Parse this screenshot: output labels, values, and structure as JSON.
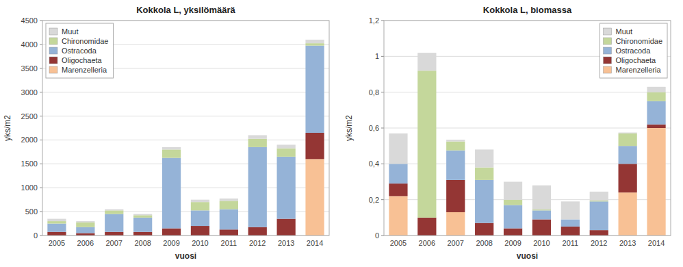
{
  "chart_data": [
    {
      "type": "bar",
      "stacked": true,
      "title": "Kokkola L, yksilömäärä",
      "x_label": "vuosi",
      "y_label": "yks/m2",
      "categories": [
        "2005",
        "2006",
        "2007",
        "2008",
        "2009",
        "2010",
        "2011",
        "2012",
        "2013",
        "2014"
      ],
      "series": [
        {
          "name": "Marenzelleria",
          "color": "#F8C195",
          "values": [
            0,
            0,
            0,
            0,
            0,
            0,
            0,
            0,
            0,
            1600
          ]
        },
        {
          "name": "Oligochaeta",
          "color": "#943634",
          "values": [
            75,
            50,
            75,
            75,
            150,
            200,
            125,
            175,
            350,
            550
          ]
        },
        {
          "name": "Ostracoda",
          "color": "#95B3D7",
          "values": [
            175,
            125,
            375,
            300,
            1475,
            325,
            425,
            1675,
            1300,
            1825
          ]
        },
        {
          "name": "Chironomidae",
          "color": "#C4D79B",
          "values": [
            50,
            100,
            75,
            50,
            175,
            175,
            175,
            175,
            175,
            50
          ]
        },
        {
          "name": "Muut",
          "color": "#D9D9D9",
          "values": [
            50,
            25,
            25,
            25,
            50,
            50,
            50,
            75,
            75,
            75
          ]
        }
      ],
      "ylim": [
        0,
        4500
      ],
      "yticks": [
        0,
        500,
        1000,
        1500,
        2000,
        2500,
        3000,
        3500,
        4000,
        4500
      ],
      "grid": true,
      "legend": "upper left"
    },
    {
      "type": "bar",
      "stacked": true,
      "title": "Kokkola L, biomassa",
      "x_label": "vuosi",
      "y_label": "yks/m2",
      "categories": [
        "2005",
        "2006",
        "2007",
        "2008",
        "2009",
        "2010",
        "2011",
        "2012",
        "2013",
        "2014"
      ],
      "series": [
        {
          "name": "Marenzelleria",
          "color": "#F8C195",
          "values": [
            0.22,
            0.0,
            0.13,
            0.0,
            0.0,
            0.0,
            0.0,
            0.0,
            0.24,
            0.6
          ]
        },
        {
          "name": "Oligochaeta",
          "color": "#943634",
          "values": [
            0.07,
            0.1,
            0.18,
            0.07,
            0.04,
            0.09,
            0.05,
            0.03,
            0.16,
            0.02
          ]
        },
        {
          "name": "Ostracoda",
          "color": "#95B3D7",
          "values": [
            0.11,
            0.0,
            0.165,
            0.24,
            0.13,
            0.05,
            0.04,
            0.16,
            0.1,
            0.13
          ]
        },
        {
          "name": "Chironomidae",
          "color": "#C4D79B",
          "values": [
            0.0,
            0.82,
            0.05,
            0.07,
            0.03,
            0.005,
            0.0,
            0.005,
            0.07,
            0.05
          ]
        },
        {
          "name": "Muut",
          "color": "#D9D9D9",
          "values": [
            0.17,
            0.1,
            0.01,
            0.1,
            0.1,
            0.135,
            0.1,
            0.05,
            0.005,
            0.03
          ]
        }
      ],
      "ylim": [
        0,
        1.2
      ],
      "yticks": [
        0,
        {
          "value": 0.2,
          "label": "0,2"
        },
        {
          "value": 0.4,
          "label": "0,4"
        },
        {
          "value": 0.6,
          "label": "0,6"
        },
        {
          "value": 0.8,
          "label": "0,8"
        },
        1,
        {
          "value": 1.2,
          "label": "1,2"
        }
      ],
      "grid": true,
      "legend": "upper right"
    }
  ]
}
